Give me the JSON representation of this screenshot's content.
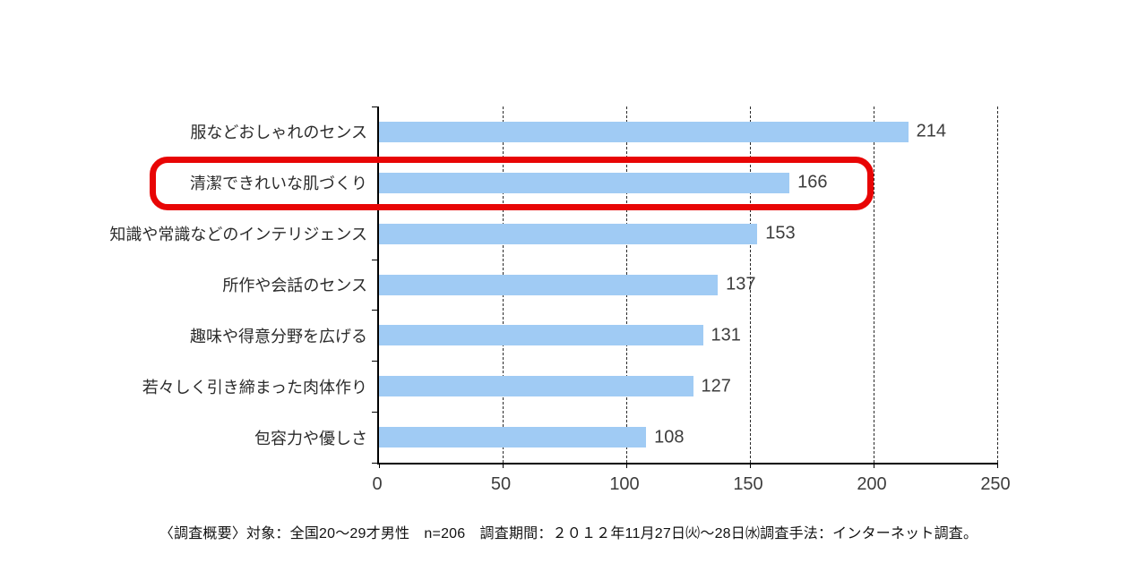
{
  "chart_data": {
    "type": "bar",
    "orientation": "horizontal",
    "categories": [
      "服などおしゃれのセンス",
      "清潔できれいな肌づくり",
      "知識や常識などのインテリジェンス",
      "所作や会話のセンス",
      "趣味や得意分野を広げる",
      "若々しく引き締まった肉体作り",
      "包容力や優しさ"
    ],
    "values": [
      214,
      166,
      153,
      137,
      131,
      127,
      108
    ],
    "xlim": [
      0,
      250
    ],
    "x_ticks": [
      0,
      50,
      100,
      150,
      200,
      250
    ],
    "grid": "vertical-dashed",
    "legend": "none",
    "bar_color": "#a0cbf4",
    "highlight": {
      "row_index": 1,
      "label": "清潔できれいな肌づくり",
      "value": 166,
      "color": "#e80505",
      "shape": "rounded-rectangle-outline"
    }
  },
  "footer": {
    "note": "〈調査概要〉対象：全国20～29才男性　n=206　調査期間：２０１２年11月27日㈫～28日㈬調査手法：インターネット調査。"
  }
}
